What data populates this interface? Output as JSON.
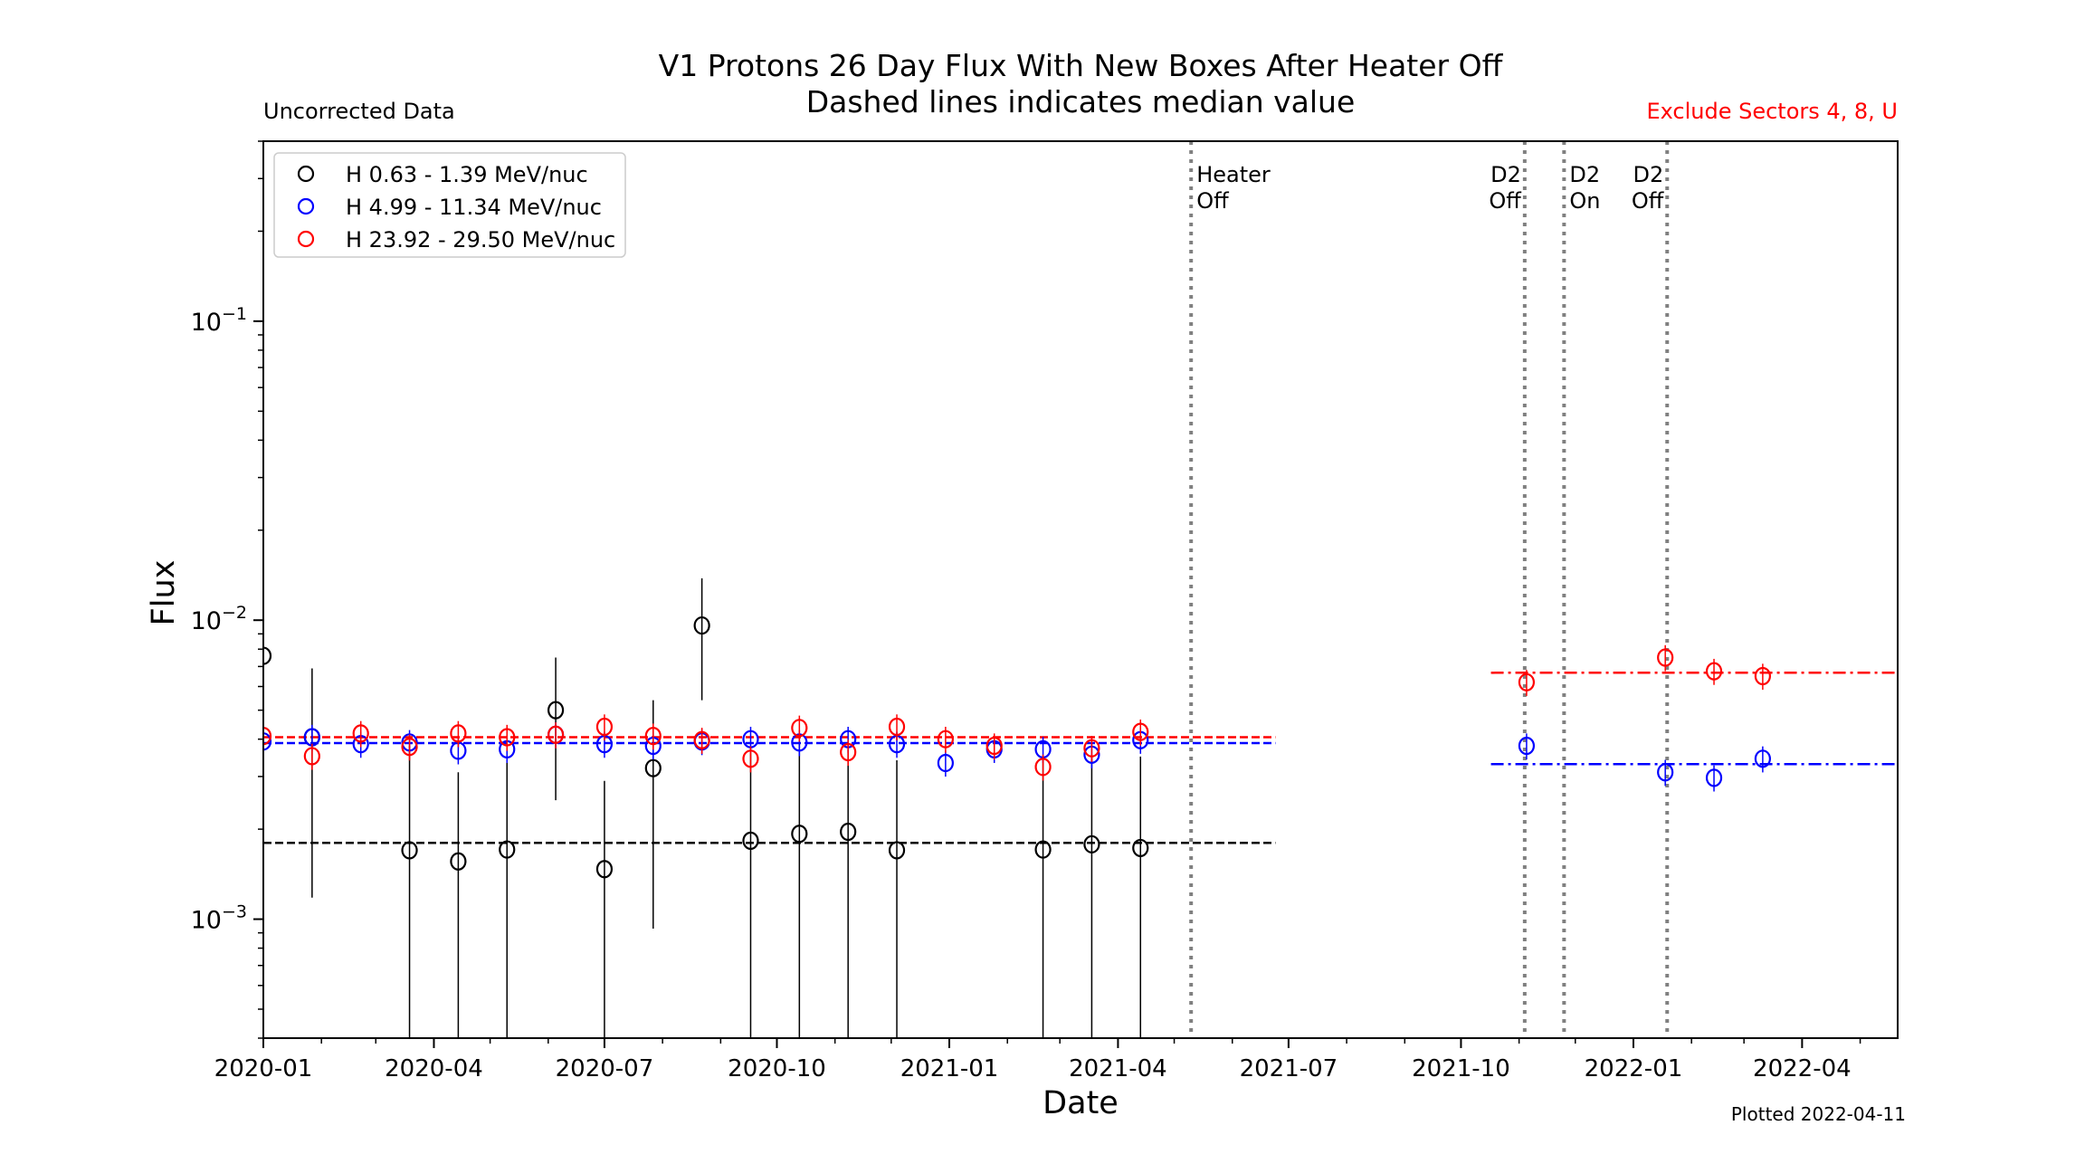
{
  "chart_data": {
    "type": "scatter",
    "title": "V1 Protons 26 Day Flux With New Boxes After Heater Off",
    "subtitle": "Dashed lines indicates median value",
    "note_left": "Uncorrected Data",
    "note_right": "Exclude Sectors 4, 8, U",
    "note_right_color": "#ff0000",
    "footer": "Plotted 2022-04-11",
    "xlabel": "Date",
    "ylabel": "Flux",
    "x_unit": "days since 2020-01-01",
    "xlim": [
      0,
      872
    ],
    "ylim": [
      0.0004,
      0.4
    ],
    "yscale": "log",
    "x_ticks": [
      {
        "x": 0,
        "label": "2020-01"
      },
      {
        "x": 91,
        "label": "2020-04"
      },
      {
        "x": 182,
        "label": "2020-07"
      },
      {
        "x": 274,
        "label": "2020-10"
      },
      {
        "x": 366,
        "label": "2021-01"
      },
      {
        "x": 456,
        "label": "2021-04"
      },
      {
        "x": 547,
        "label": "2021-07"
      },
      {
        "x": 639,
        "label": "2021-10"
      },
      {
        "x": 731,
        "label": "2022-01"
      },
      {
        "x": 821,
        "label": "2022-04"
      }
    ],
    "x_minor_ticks": [
      31,
      60,
      121,
      152,
      213,
      244,
      305,
      335,
      397,
      425,
      486,
      517,
      578,
      609,
      670,
      700,
      762,
      790,
      852
    ],
    "y_ticks": [
      {
        "y": 0.1,
        "base": "10",
        "exp": "−1"
      },
      {
        "y": 0.01,
        "base": "10",
        "exp": "−2"
      },
      {
        "y": 0.001,
        "base": "10",
        "exp": "−3"
      }
    ],
    "legend_position": "top-left",
    "series": [
      {
        "name": "H 0.63 - 1.39 MeV/nuc",
        "color": "#000000",
        "points": [
          {
            "x": 0,
            "y": 0.0076,
            "lo": 0.0032,
            "hi": 0.012
          },
          {
            "x": 26,
            "y": 0.00406,
            "lo": 0.00118,
            "hi": 0.0069
          },
          {
            "x": 78,
            "y": 0.0017,
            "lo": 0.0001,
            "hi": 0.0038
          },
          {
            "x": 104,
            "y": 0.00156,
            "lo": 0.0001,
            "hi": 0.0031
          },
          {
            "x": 130,
            "y": 0.00171,
            "lo": 0.0001,
            "hi": 0.0035
          },
          {
            "x": 156,
            "y": 0.005,
            "lo": 0.0025,
            "hi": 0.0075
          },
          {
            "x": 182,
            "y": 0.00147,
            "lo": 0.0001,
            "hi": 0.0029
          },
          {
            "x": 208,
            "y": 0.0032,
            "lo": 0.00093,
            "hi": 0.0054
          },
          {
            "x": 234,
            "y": 0.0096,
            "lo": 0.0054,
            "hi": 0.0138
          },
          {
            "x": 260,
            "y": 0.00183,
            "lo": 0.0001,
            "hi": 0.0036
          },
          {
            "x": 286,
            "y": 0.00193,
            "lo": 0.0001,
            "hi": 0.0039
          },
          {
            "x": 312,
            "y": 0.00196,
            "lo": 0.0001,
            "hi": 0.0037
          },
          {
            "x": 338,
            "y": 0.0017,
            "lo": 0.0001,
            "hi": 0.0034
          },
          {
            "x": 416,
            "y": 0.00171,
            "lo": 0.0001,
            "hi": 0.0034
          },
          {
            "x": 442,
            "y": 0.00178,
            "lo": 0.0001,
            "hi": 0.0035
          },
          {
            "x": 468,
            "y": 0.00173,
            "lo": 0.0001,
            "hi": 0.0035
          }
        ],
        "medians": [
          {
            "value": 0.0018,
            "x_start": 0,
            "x_end": 540,
            "style": "dashed"
          }
        ]
      },
      {
        "name": "H 4.99 - 11.34 MeV/nuc",
        "color": "#0000ff",
        "points": [
          {
            "x": 0,
            "y": 0.00393
          },
          {
            "x": 26,
            "y": 0.00406
          },
          {
            "x": 52,
            "y": 0.00385
          },
          {
            "x": 78,
            "y": 0.0039
          },
          {
            "x": 104,
            "y": 0.00366
          },
          {
            "x": 130,
            "y": 0.0037
          },
          {
            "x": 156,
            "y": 0.00414
          },
          {
            "x": 182,
            "y": 0.00385
          },
          {
            "x": 208,
            "y": 0.0038
          },
          {
            "x": 234,
            "y": 0.00393
          },
          {
            "x": 260,
            "y": 0.004
          },
          {
            "x": 286,
            "y": 0.0039
          },
          {
            "x": 312,
            "y": 0.004
          },
          {
            "x": 338,
            "y": 0.00385
          },
          {
            "x": 364,
            "y": 0.00333
          },
          {
            "x": 390,
            "y": 0.0037
          },
          {
            "x": 416,
            "y": 0.0037
          },
          {
            "x": 442,
            "y": 0.00355
          },
          {
            "x": 468,
            "y": 0.00397
          },
          {
            "x": 674,
            "y": 0.0038
          },
          {
            "x": 748,
            "y": 0.0031
          },
          {
            "x": 774,
            "y": 0.00297
          },
          {
            "x": 800,
            "y": 0.00344
          }
        ],
        "rel_err": 0.1,
        "medians": [
          {
            "value": 0.00388,
            "x_start": 0,
            "x_end": 540,
            "style": "dashed"
          },
          {
            "value": 0.0033,
            "x_start": 655,
            "x_end": 872,
            "style": "dashdot"
          }
        ]
      },
      {
        "name": "H 23.92 - 29.50 MeV/nuc",
        "color": "#ff0000",
        "points": [
          {
            "x": 0,
            "y": 0.0041
          },
          {
            "x": 26,
            "y": 0.00351
          },
          {
            "x": 52,
            "y": 0.00418
          },
          {
            "x": 78,
            "y": 0.00377
          },
          {
            "x": 104,
            "y": 0.00418
          },
          {
            "x": 130,
            "y": 0.00406
          },
          {
            "x": 156,
            "y": 0.00414
          },
          {
            "x": 182,
            "y": 0.0044
          },
          {
            "x": 208,
            "y": 0.0041
          },
          {
            "x": 234,
            "y": 0.00397
          },
          {
            "x": 260,
            "y": 0.00344
          },
          {
            "x": 286,
            "y": 0.00436
          },
          {
            "x": 312,
            "y": 0.00362
          },
          {
            "x": 338,
            "y": 0.0044
          },
          {
            "x": 364,
            "y": 0.004
          },
          {
            "x": 390,
            "y": 0.0038
          },
          {
            "x": 416,
            "y": 0.00323
          },
          {
            "x": 442,
            "y": 0.00373
          },
          {
            "x": 468,
            "y": 0.00423
          },
          {
            "x": 674,
            "y": 0.0062
          },
          {
            "x": 748,
            "y": 0.0075
          },
          {
            "x": 774,
            "y": 0.00675
          },
          {
            "x": 800,
            "y": 0.0065
          }
        ],
        "rel_err": 0.1,
        "medians": [
          {
            "value": 0.00406,
            "x_start": 0,
            "x_end": 540,
            "style": "dashed"
          },
          {
            "value": 0.00667,
            "x_start": 655,
            "x_end": 872,
            "style": "dashdot"
          }
        ]
      }
    ],
    "events": [
      {
        "x": 495,
        "line1": "Heater",
        "line2": "Off"
      },
      {
        "x": 673,
        "line1": "D2",
        "line2": "Off",
        "align": "left"
      },
      {
        "x": 694,
        "line1": "D2",
        "line2": "On"
      },
      {
        "x": 749,
        "line1": "D2",
        "line2": "Off",
        "align": "left"
      }
    ]
  }
}
